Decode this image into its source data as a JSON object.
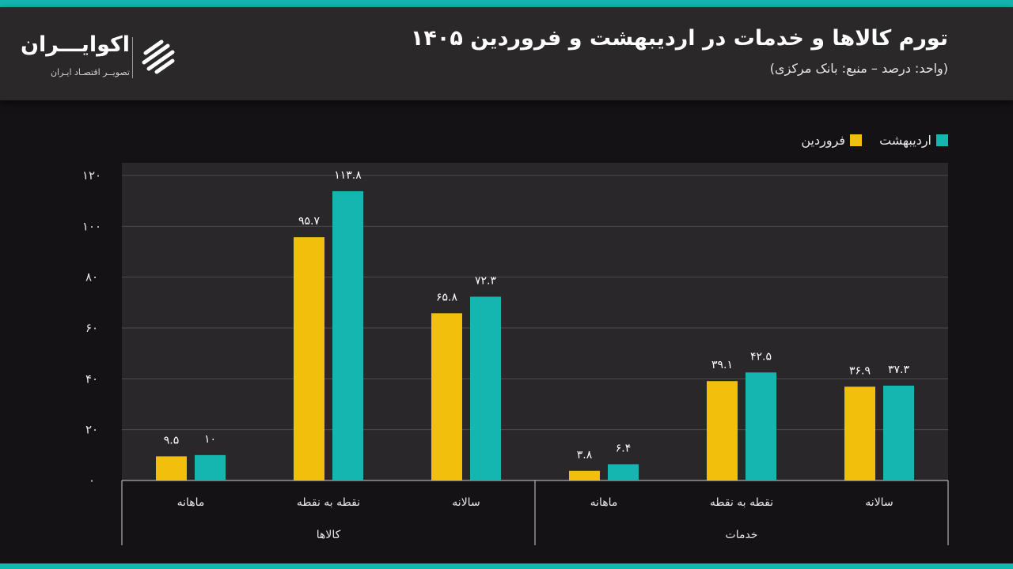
{
  "header": {
    "title": "تورم کالاها و خدمات در اردیبهشت و فروردین ۱۴۰۵",
    "subtitle": "(واحد: درصد – منبع: بانک مرکزی)"
  },
  "logo": {
    "name": "اکوایـــران",
    "tagline": "تصویــر اقتصـاد ایـران"
  },
  "colors": {
    "farvardin": "#f2c00c",
    "ordibehesht": "#15b5b0",
    "plot_bg": "#29272a",
    "grid": "#4d4b4e"
  },
  "chart_data": {
    "type": "bar",
    "title": "تورم کالاها و خدمات در اردیبهشت و فروردین ۱۴۰۵",
    "xlabel": "",
    "ylabel": "",
    "ylim": [
      0,
      120
    ],
    "yticks": [
      0,
      20,
      40,
      60,
      80,
      100,
      120
    ],
    "ytick_labels": [
      "۰",
      "۲۰",
      "۴۰",
      "۶۰",
      "۸۰",
      "۱۰۰",
      "۱۲۰"
    ],
    "grid": true,
    "legend_position": "top-right",
    "groups": [
      {
        "name": "کالاها",
        "categories": [
          "ماهانه",
          "نقطه به نقطه",
          "سالانه"
        ]
      },
      {
        "name": "خدمات",
        "categories": [
          "ماهانه",
          "نقطه به نقطه",
          "سالانه"
        ]
      }
    ],
    "series": [
      {
        "name": "فروردین",
        "color": "#f2c00c",
        "values": [
          9.5,
          95.7,
          65.8,
          3.8,
          39.1,
          36.9
        ],
        "labels": [
          "۹.۵",
          "۹۵.۷",
          "۶۵.۸",
          "۳.۸",
          "۳۹.۱",
          "۳۶.۹"
        ]
      },
      {
        "name": "اردیبهشت",
        "color": "#15b5b0",
        "values": [
          10,
          113.8,
          72.3,
          6.4,
          42.5,
          37.3
        ],
        "labels": [
          "۱۰",
          "۱۱۳.۸",
          "۷۲.۳",
          "۶.۴",
          "۴۲.۵",
          "۳۷.۳"
        ]
      }
    ]
  }
}
